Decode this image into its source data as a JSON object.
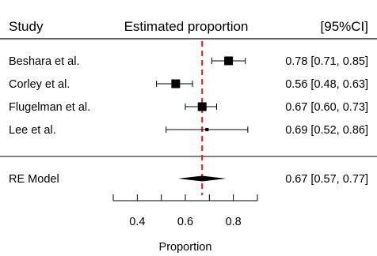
{
  "chart_data": {
    "type": "forest",
    "columns": {
      "study": "Study",
      "estimate": "Estimated proportion",
      "ci": "[95%CI]"
    },
    "studies": [
      {
        "label": "Beshara et al.",
        "estimate": 0.78,
        "lower": 0.71,
        "upper": 0.85,
        "text": "0.78 [0.71, 0.85]",
        "weight": 1.0
      },
      {
        "label": "Corley et al.",
        "estimate": 0.56,
        "lower": 0.48,
        "upper": 0.63,
        "text": "0.56 [0.48, 0.63]",
        "weight": 1.0
      },
      {
        "label": "Flugelman et al.",
        "estimate": 0.67,
        "lower": 0.6,
        "upper": 0.73,
        "text": "0.67 [0.60, 0.73]",
        "weight": 1.0
      },
      {
        "label": "Lee et al.",
        "estimate": 0.69,
        "lower": 0.52,
        "upper": 0.86,
        "text": "0.69 [0.52, 0.86]",
        "weight": 0.15
      }
    ],
    "summary": {
      "label": "RE Model",
      "estimate": 0.67,
      "lower": 0.57,
      "upper": 0.77,
      "text": "0.67 [0.57, 0.77]"
    },
    "reference_line": 0.67,
    "reference_color": "#d62728",
    "xlabel": "Proportion",
    "xlim": [
      0.3,
      0.9
    ],
    "x_ticks": [
      0.3,
      0.4,
      0.5,
      0.6,
      0.7,
      0.8,
      0.9
    ],
    "x_tick_labels": [
      {
        "value": 0.4,
        "label": "0.4"
      },
      {
        "value": 0.6,
        "label": "0.6"
      },
      {
        "value": 0.8,
        "label": "0.8"
      }
    ]
  }
}
